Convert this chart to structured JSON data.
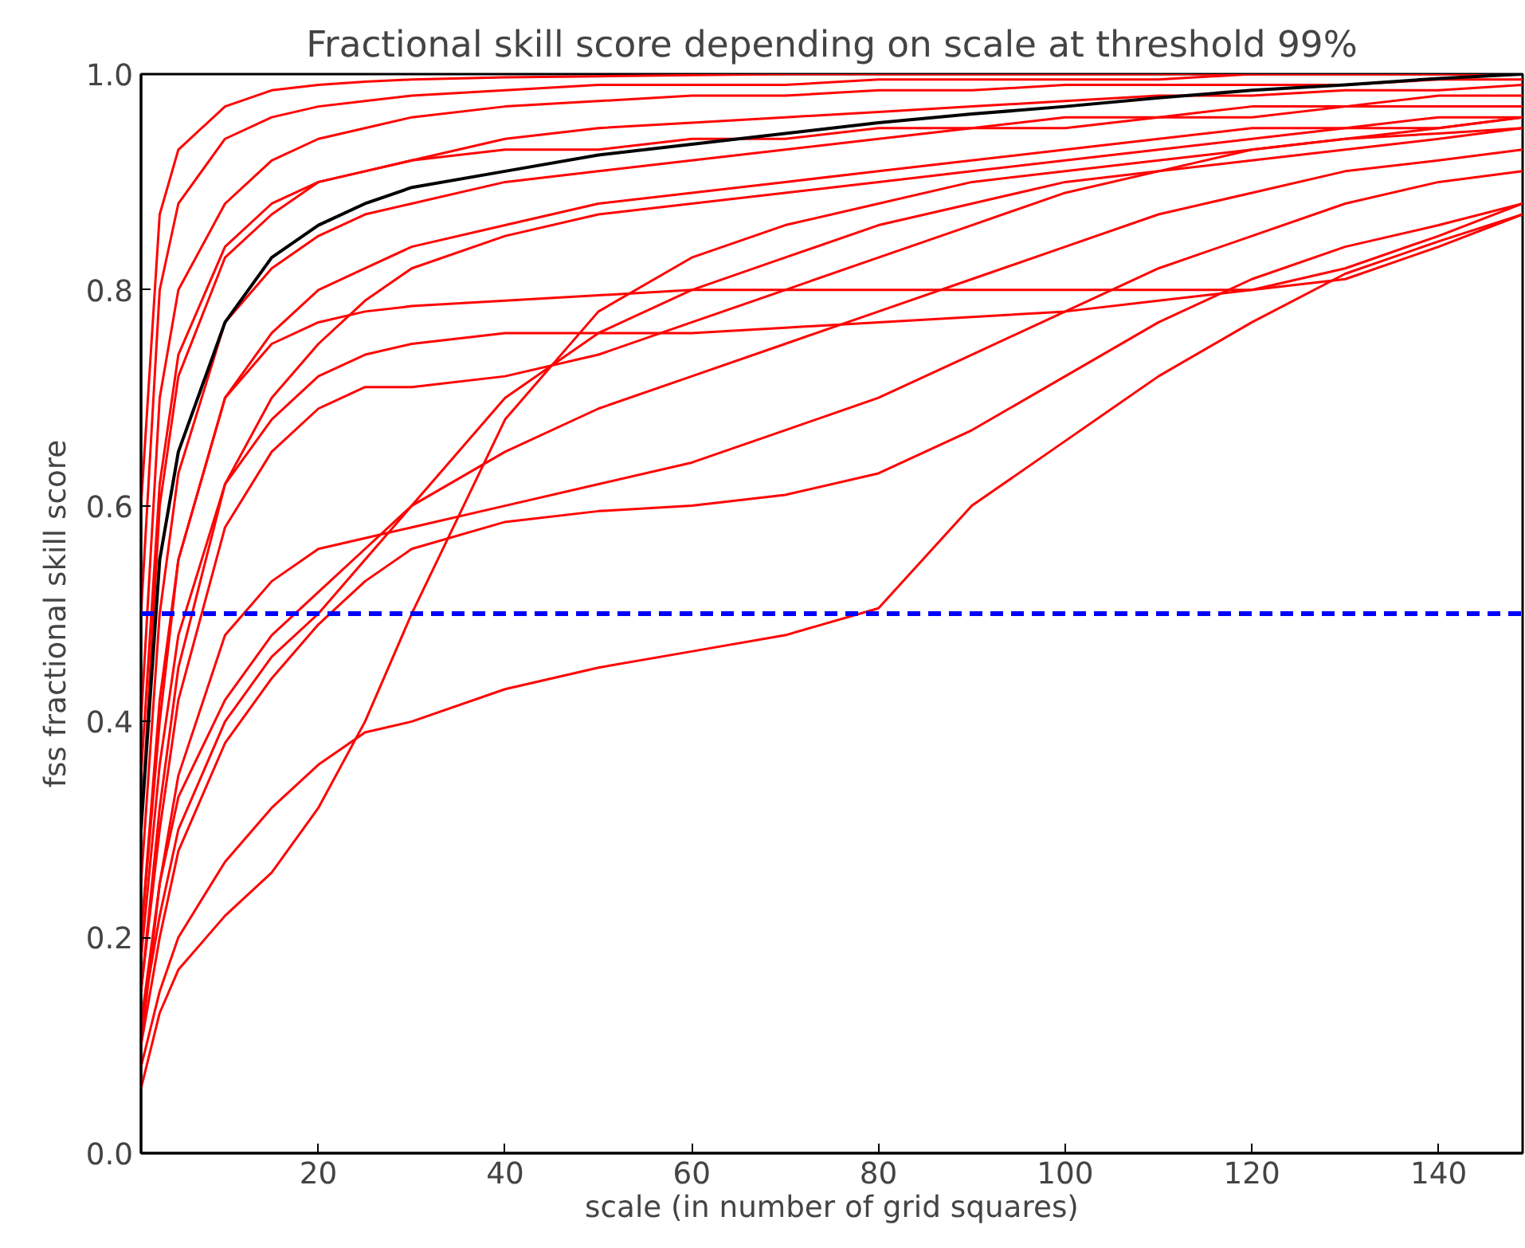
{
  "chart_data": {
    "type": "line",
    "title": "Fractional skill score depending on scale at threshold 99%",
    "xlabel": "scale (in number of grid squares)",
    "ylabel": "fss fractional skill score",
    "x": [
      1,
      3,
      5,
      10,
      15,
      20,
      25,
      30,
      40,
      50,
      60,
      70,
      80,
      90,
      100,
      110,
      120,
      130,
      140,
      149
    ],
    "xlim": [
      1,
      149
    ],
    "ylim": [
      0,
      1
    ],
    "xticks": [
      20,
      40,
      60,
      80,
      100,
      120,
      140
    ],
    "yticks": [
      {
        "value": 0,
        "label": "0.0"
      },
      {
        "value": 0.2,
        "label": "0.2"
      },
      {
        "value": 0.4,
        "label": "0.4"
      },
      {
        "value": 0.6,
        "label": "0.6"
      },
      {
        "value": 0.8,
        "label": "0.8"
      },
      {
        "value": 1,
        "label": "1.0"
      }
    ],
    "grid": false,
    "line_style": "solid",
    "series": [
      {
        "color": "#ff0000",
        "values": [
          0.08,
          0.15,
          0.2,
          0.27,
          0.32,
          0.36,
          0.39,
          0.4,
          0.43,
          0.45,
          0.465,
          0.48,
          0.505,
          0.6,
          0.66,
          0.72,
          0.77,
          0.815,
          0.845,
          0.87
        ]
      },
      {
        "color": "#ff0000",
        "values": [
          0.1,
          0.2,
          0.28,
          0.38,
          0.44,
          0.49,
          0.53,
          0.56,
          0.585,
          0.595,
          0.6,
          0.61,
          0.63,
          0.67,
          0.72,
          0.77,
          0.81,
          0.84,
          0.86,
          0.88
        ]
      },
      {
        "color": "#ff0000",
        "values": [
          0.06,
          0.13,
          0.17,
          0.22,
          0.26,
          0.32,
          0.4,
          0.5,
          0.68,
          0.78,
          0.83,
          0.86,
          0.88,
          0.9,
          0.91,
          0.92,
          0.93,
          0.94,
          0.945,
          0.95
        ]
      },
      {
        "color": "#ff0000",
        "values": [
          0.15,
          0.32,
          0.45,
          0.62,
          0.68,
          0.72,
          0.74,
          0.75,
          0.76,
          0.76,
          0.76,
          0.765,
          0.77,
          0.775,
          0.78,
          0.79,
          0.8,
          0.82,
          0.85,
          0.88
        ]
      },
      {
        "color": "#ff0000",
        "values": [
          0.2,
          0.4,
          0.55,
          0.7,
          0.75,
          0.77,
          0.78,
          0.785,
          0.79,
          0.795,
          0.8,
          0.8,
          0.8,
          0.8,
          0.8,
          0.8,
          0.8,
          0.81,
          0.84,
          0.87
        ]
      },
      {
        "color": "#ff0000",
        "values": [
          0.1,
          0.25,
          0.35,
          0.48,
          0.53,
          0.56,
          0.57,
          0.58,
          0.6,
          0.62,
          0.64,
          0.67,
          0.7,
          0.74,
          0.78,
          0.82,
          0.85,
          0.88,
          0.9,
          0.91
        ]
      },
      {
        "color": "#ff0000",
        "values": [
          0.12,
          0.25,
          0.33,
          0.42,
          0.48,
          0.52,
          0.56,
          0.6,
          0.65,
          0.69,
          0.72,
          0.75,
          0.78,
          0.81,
          0.84,
          0.87,
          0.89,
          0.91,
          0.92,
          0.93
        ]
      },
      {
        "color": "#ff0000",
        "values": [
          0.15,
          0.3,
          0.42,
          0.58,
          0.65,
          0.69,
          0.71,
          0.71,
          0.72,
          0.74,
          0.77,
          0.8,
          0.83,
          0.86,
          0.89,
          0.91,
          0.93,
          0.94,
          0.95,
          0.96
        ]
      },
      {
        "color": "#ff0000",
        "values": [
          0.2,
          0.42,
          0.55,
          0.7,
          0.76,
          0.8,
          0.82,
          0.84,
          0.86,
          0.88,
          0.89,
          0.9,
          0.91,
          0.92,
          0.93,
          0.94,
          0.95,
          0.95,
          0.96,
          0.96
        ]
      },
      {
        "color": "#ff0000",
        "values": [
          0.25,
          0.5,
          0.63,
          0.77,
          0.82,
          0.85,
          0.87,
          0.88,
          0.9,
          0.91,
          0.92,
          0.93,
          0.94,
          0.95,
          0.95,
          0.96,
          0.96,
          0.97,
          0.97,
          0.97
        ]
      },
      {
        "color": "#ff0000",
        "values": [
          0.3,
          0.6,
          0.72,
          0.83,
          0.87,
          0.9,
          0.91,
          0.92,
          0.94,
          0.95,
          0.955,
          0.96,
          0.965,
          0.97,
          0.975,
          0.98,
          0.98,
          0.985,
          0.985,
          0.99
        ]
      },
      {
        "color": "#ff0000",
        "values": [
          0.4,
          0.7,
          0.8,
          0.88,
          0.92,
          0.94,
          0.95,
          0.96,
          0.97,
          0.975,
          0.98,
          0.98,
          0.985,
          0.985,
          0.99,
          0.99,
          0.99,
          0.99,
          0.995,
          0.995
        ]
      },
      {
        "color": "#ff0000",
        "values": [
          0.5,
          0.8,
          0.88,
          0.94,
          0.96,
          0.97,
          0.975,
          0.98,
          0.985,
          0.99,
          0.99,
          0.99,
          0.995,
          0.995,
          0.995,
          0.995,
          1.0,
          1.0,
          1.0,
          1.0
        ]
      },
      {
        "color": "#ff0000",
        "values": [
          0.6,
          0.87,
          0.93,
          0.97,
          0.985,
          0.99,
          0.993,
          0.995,
          0.997,
          0.998,
          0.999,
          1.0,
          1.0,
          1.0,
          1.0,
          1.0,
          1.0,
          1.0,
          1.0,
          1.0
        ]
      },
      {
        "color": "#ff0000",
        "values": [
          0.35,
          0.62,
          0.74,
          0.84,
          0.88,
          0.9,
          0.91,
          0.92,
          0.93,
          0.93,
          0.94,
          0.94,
          0.95,
          0.95,
          0.96,
          0.96,
          0.97,
          0.97,
          0.98,
          0.98
        ]
      },
      {
        "color": "#ff0000",
        "values": [
          0.18,
          0.36,
          0.48,
          0.62,
          0.7,
          0.75,
          0.79,
          0.82,
          0.85,
          0.87,
          0.88,
          0.89,
          0.9,
          0.91,
          0.92,
          0.93,
          0.94,
          0.95,
          0.95,
          0.96
        ]
      },
      {
        "color": "#ff0000",
        "values": [
          0.12,
          0.22,
          0.3,
          0.4,
          0.46,
          0.5,
          0.55,
          0.6,
          0.7,
          0.76,
          0.8,
          0.83,
          0.86,
          0.88,
          0.9,
          0.91,
          0.92,
          0.93,
          0.94,
          0.95
        ]
      },
      {
        "color": "#000000",
        "values": [
          0.3,
          0.55,
          0.65,
          0.77,
          0.83,
          0.86,
          0.88,
          0.895,
          0.91,
          0.925,
          0.935,
          0.945,
          0.955,
          0.963,
          0.97,
          0.978,
          0.985,
          0.99,
          0.996,
          1.0
        ]
      }
    ],
    "ref_lines": [
      {
        "axis": "y",
        "value": 0.5,
        "color": "#0000ff",
        "line_style": "dashed"
      }
    ]
  }
}
